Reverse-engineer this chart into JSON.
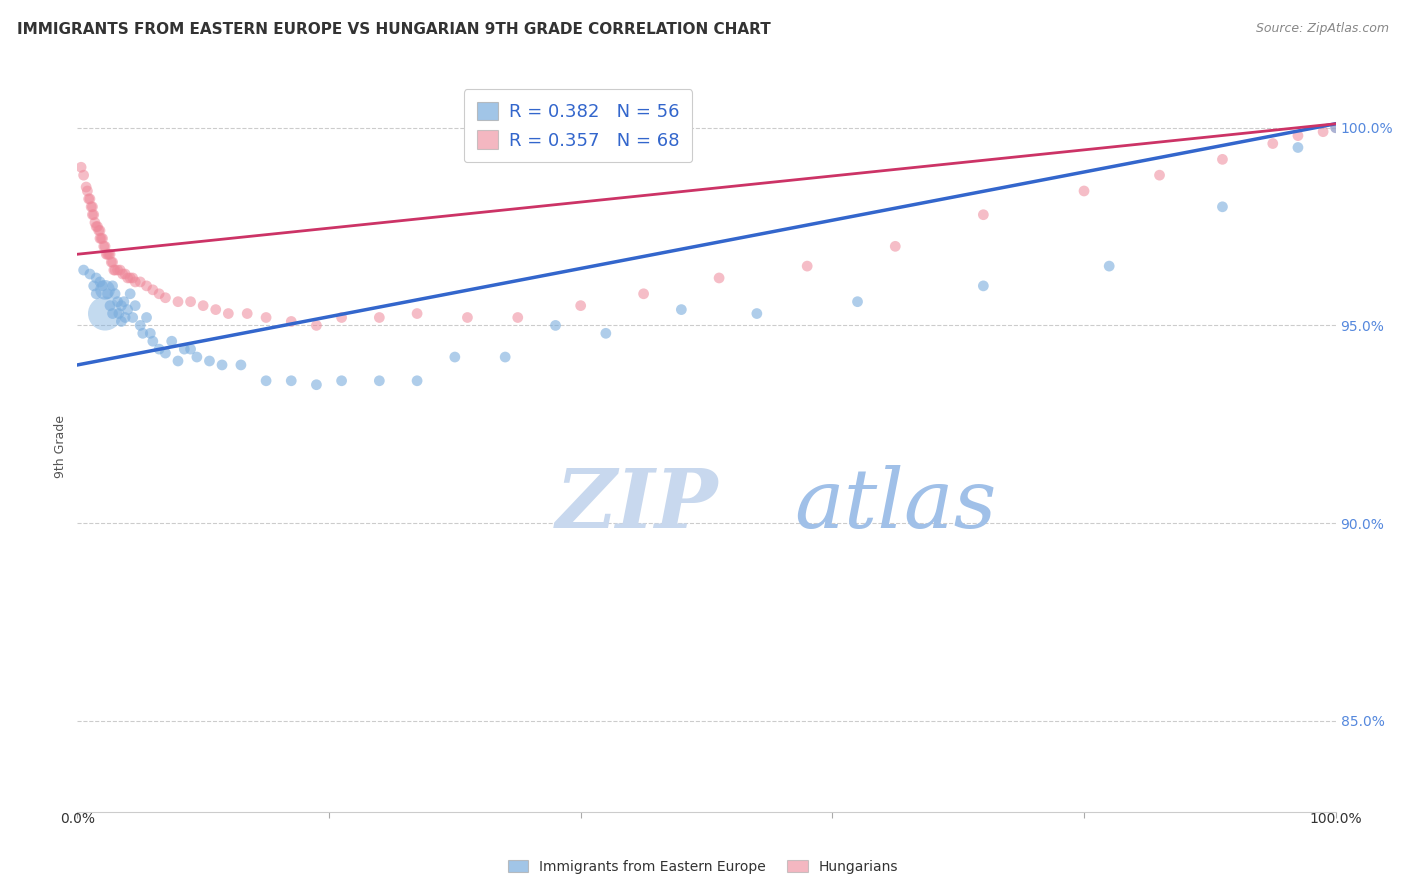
{
  "title": "IMMIGRANTS FROM EASTERN EUROPE VS HUNGARIAN 9TH GRADE CORRELATION CHART",
  "source": "Source: ZipAtlas.com",
  "ylabel": "9th Grade",
  "ytick_labels": [
    "85.0%",
    "90.0%",
    "95.0%",
    "100.0%"
  ],
  "ytick_values": [
    0.85,
    0.9,
    0.95,
    1.0
  ],
  "xlim": [
    0.0,
    1.0
  ],
  "ylim": [
    0.827,
    1.012
  ],
  "legend_r1": "R = 0.382",
  "legend_n1": "N = 56",
  "legend_r2": "R = 0.357",
  "legend_n2": "N = 68",
  "blue_color": "#7aaddd",
  "pink_color": "#ee8899",
  "blue_line_color": "#3366cc",
  "pink_line_color": "#cc3366",
  "watermark_zip": "ZIP",
  "watermark_atlas": "atlas",
  "blue_line_y_start": 0.94,
  "blue_line_y_end": 1.001,
  "pink_line_y_start": 0.968,
  "pink_line_y_end": 1.001,
  "grid_color": "#cccccc",
  "background_color": "#ffffff",
  "title_fontsize": 11,
  "axis_label_fontsize": 9,
  "tick_fontsize": 10,
  "legend_fontsize": 13,
  "watermark_fontsize_zip": 60,
  "watermark_fontsize_atlas": 60,
  "watermark_color_zip": "#c8d8ee",
  "watermark_color_atlas": "#a0c0e8",
  "blue_scatter_x": [
    0.005,
    0.01,
    0.013,
    0.015,
    0.015,
    0.018,
    0.02,
    0.022,
    0.024,
    0.026,
    0.028,
    0.028,
    0.03,
    0.032,
    0.033,
    0.035,
    0.035,
    0.037,
    0.038,
    0.04,
    0.042,
    0.044,
    0.046,
    0.05,
    0.052,
    0.055,
    0.058,
    0.06,
    0.065,
    0.07,
    0.075,
    0.08,
    0.085,
    0.09,
    0.095,
    0.105,
    0.115,
    0.13,
    0.15,
    0.17,
    0.19,
    0.21,
    0.24,
    0.27,
    0.3,
    0.34,
    0.38,
    0.42,
    0.48,
    0.54,
    0.62,
    0.72,
    0.82,
    0.91,
    0.97,
    1.0
  ],
  "blue_scatter_y": [
    0.964,
    0.963,
    0.96,
    0.962,
    0.958,
    0.961,
    0.96,
    0.959,
    0.958,
    0.955,
    0.96,
    0.953,
    0.958,
    0.956,
    0.953,
    0.955,
    0.951,
    0.956,
    0.952,
    0.954,
    0.958,
    0.952,
    0.955,
    0.95,
    0.948,
    0.952,
    0.948,
    0.946,
    0.944,
    0.943,
    0.946,
    0.941,
    0.944,
    0.944,
    0.942,
    0.941,
    0.94,
    0.94,
    0.936,
    0.936,
    0.935,
    0.936,
    0.936,
    0.936,
    0.942,
    0.942,
    0.95,
    0.948,
    0.954,
    0.953,
    0.956,
    0.96,
    0.965,
    0.98,
    0.995,
    1.0
  ],
  "blue_scatter_sizes": [
    60,
    60,
    60,
    60,
    60,
    60,
    60,
    200,
    60,
    60,
    60,
    60,
    60,
    60,
    60,
    60,
    60,
    60,
    60,
    60,
    60,
    60,
    60,
    60,
    60,
    60,
    60,
    60,
    60,
    60,
    60,
    60,
    60,
    60,
    60,
    60,
    60,
    60,
    60,
    60,
    60,
    60,
    60,
    60,
    60,
    60,
    60,
    60,
    60,
    60,
    60,
    60,
    60,
    60,
    60,
    60
  ],
  "pink_scatter_x": [
    0.003,
    0.005,
    0.007,
    0.008,
    0.009,
    0.01,
    0.011,
    0.012,
    0.012,
    0.013,
    0.014,
    0.015,
    0.016,
    0.017,
    0.018,
    0.018,
    0.019,
    0.02,
    0.021,
    0.022,
    0.023,
    0.024,
    0.025,
    0.026,
    0.027,
    0.028,
    0.029,
    0.03,
    0.032,
    0.034,
    0.036,
    0.038,
    0.04,
    0.042,
    0.044,
    0.046,
    0.05,
    0.055,
    0.06,
    0.065,
    0.07,
    0.08,
    0.09,
    0.1,
    0.11,
    0.12,
    0.135,
    0.15,
    0.17,
    0.19,
    0.21,
    0.24,
    0.27,
    0.31,
    0.35,
    0.4,
    0.45,
    0.51,
    0.58,
    0.65,
    0.72,
    0.8,
    0.86,
    0.91,
    0.95,
    0.97,
    0.99,
    1.0
  ],
  "pink_scatter_y": [
    0.99,
    0.988,
    0.985,
    0.984,
    0.982,
    0.982,
    0.98,
    0.98,
    0.978,
    0.978,
    0.976,
    0.975,
    0.975,
    0.974,
    0.974,
    0.972,
    0.972,
    0.972,
    0.97,
    0.97,
    0.968,
    0.968,
    0.968,
    0.968,
    0.966,
    0.966,
    0.964,
    0.964,
    0.964,
    0.964,
    0.963,
    0.963,
    0.962,
    0.962,
    0.962,
    0.961,
    0.961,
    0.96,
    0.959,
    0.958,
    0.957,
    0.956,
    0.956,
    0.955,
    0.954,
    0.953,
    0.953,
    0.952,
    0.951,
    0.95,
    0.952,
    0.952,
    0.953,
    0.952,
    0.952,
    0.955,
    0.958,
    0.962,
    0.965,
    0.97,
    0.978,
    0.984,
    0.988,
    0.992,
    0.996,
    0.998,
    0.999,
    1.0
  ],
  "pink_scatter_sizes": [
    60,
    60,
    60,
    60,
    60,
    60,
    60,
    60,
    60,
    60,
    60,
    60,
    60,
    60,
    60,
    60,
    60,
    60,
    60,
    60,
    60,
    60,
    60,
    60,
    60,
    60,
    60,
    60,
    60,
    60,
    60,
    60,
    60,
    60,
    60,
    60,
    60,
    60,
    60,
    60,
    60,
    60,
    60,
    60,
    60,
    60,
    60,
    60,
    60,
    60,
    60,
    60,
    60,
    60,
    60,
    60,
    60,
    60,
    60,
    60,
    60,
    60,
    60,
    60,
    60,
    60,
    60,
    60
  ]
}
